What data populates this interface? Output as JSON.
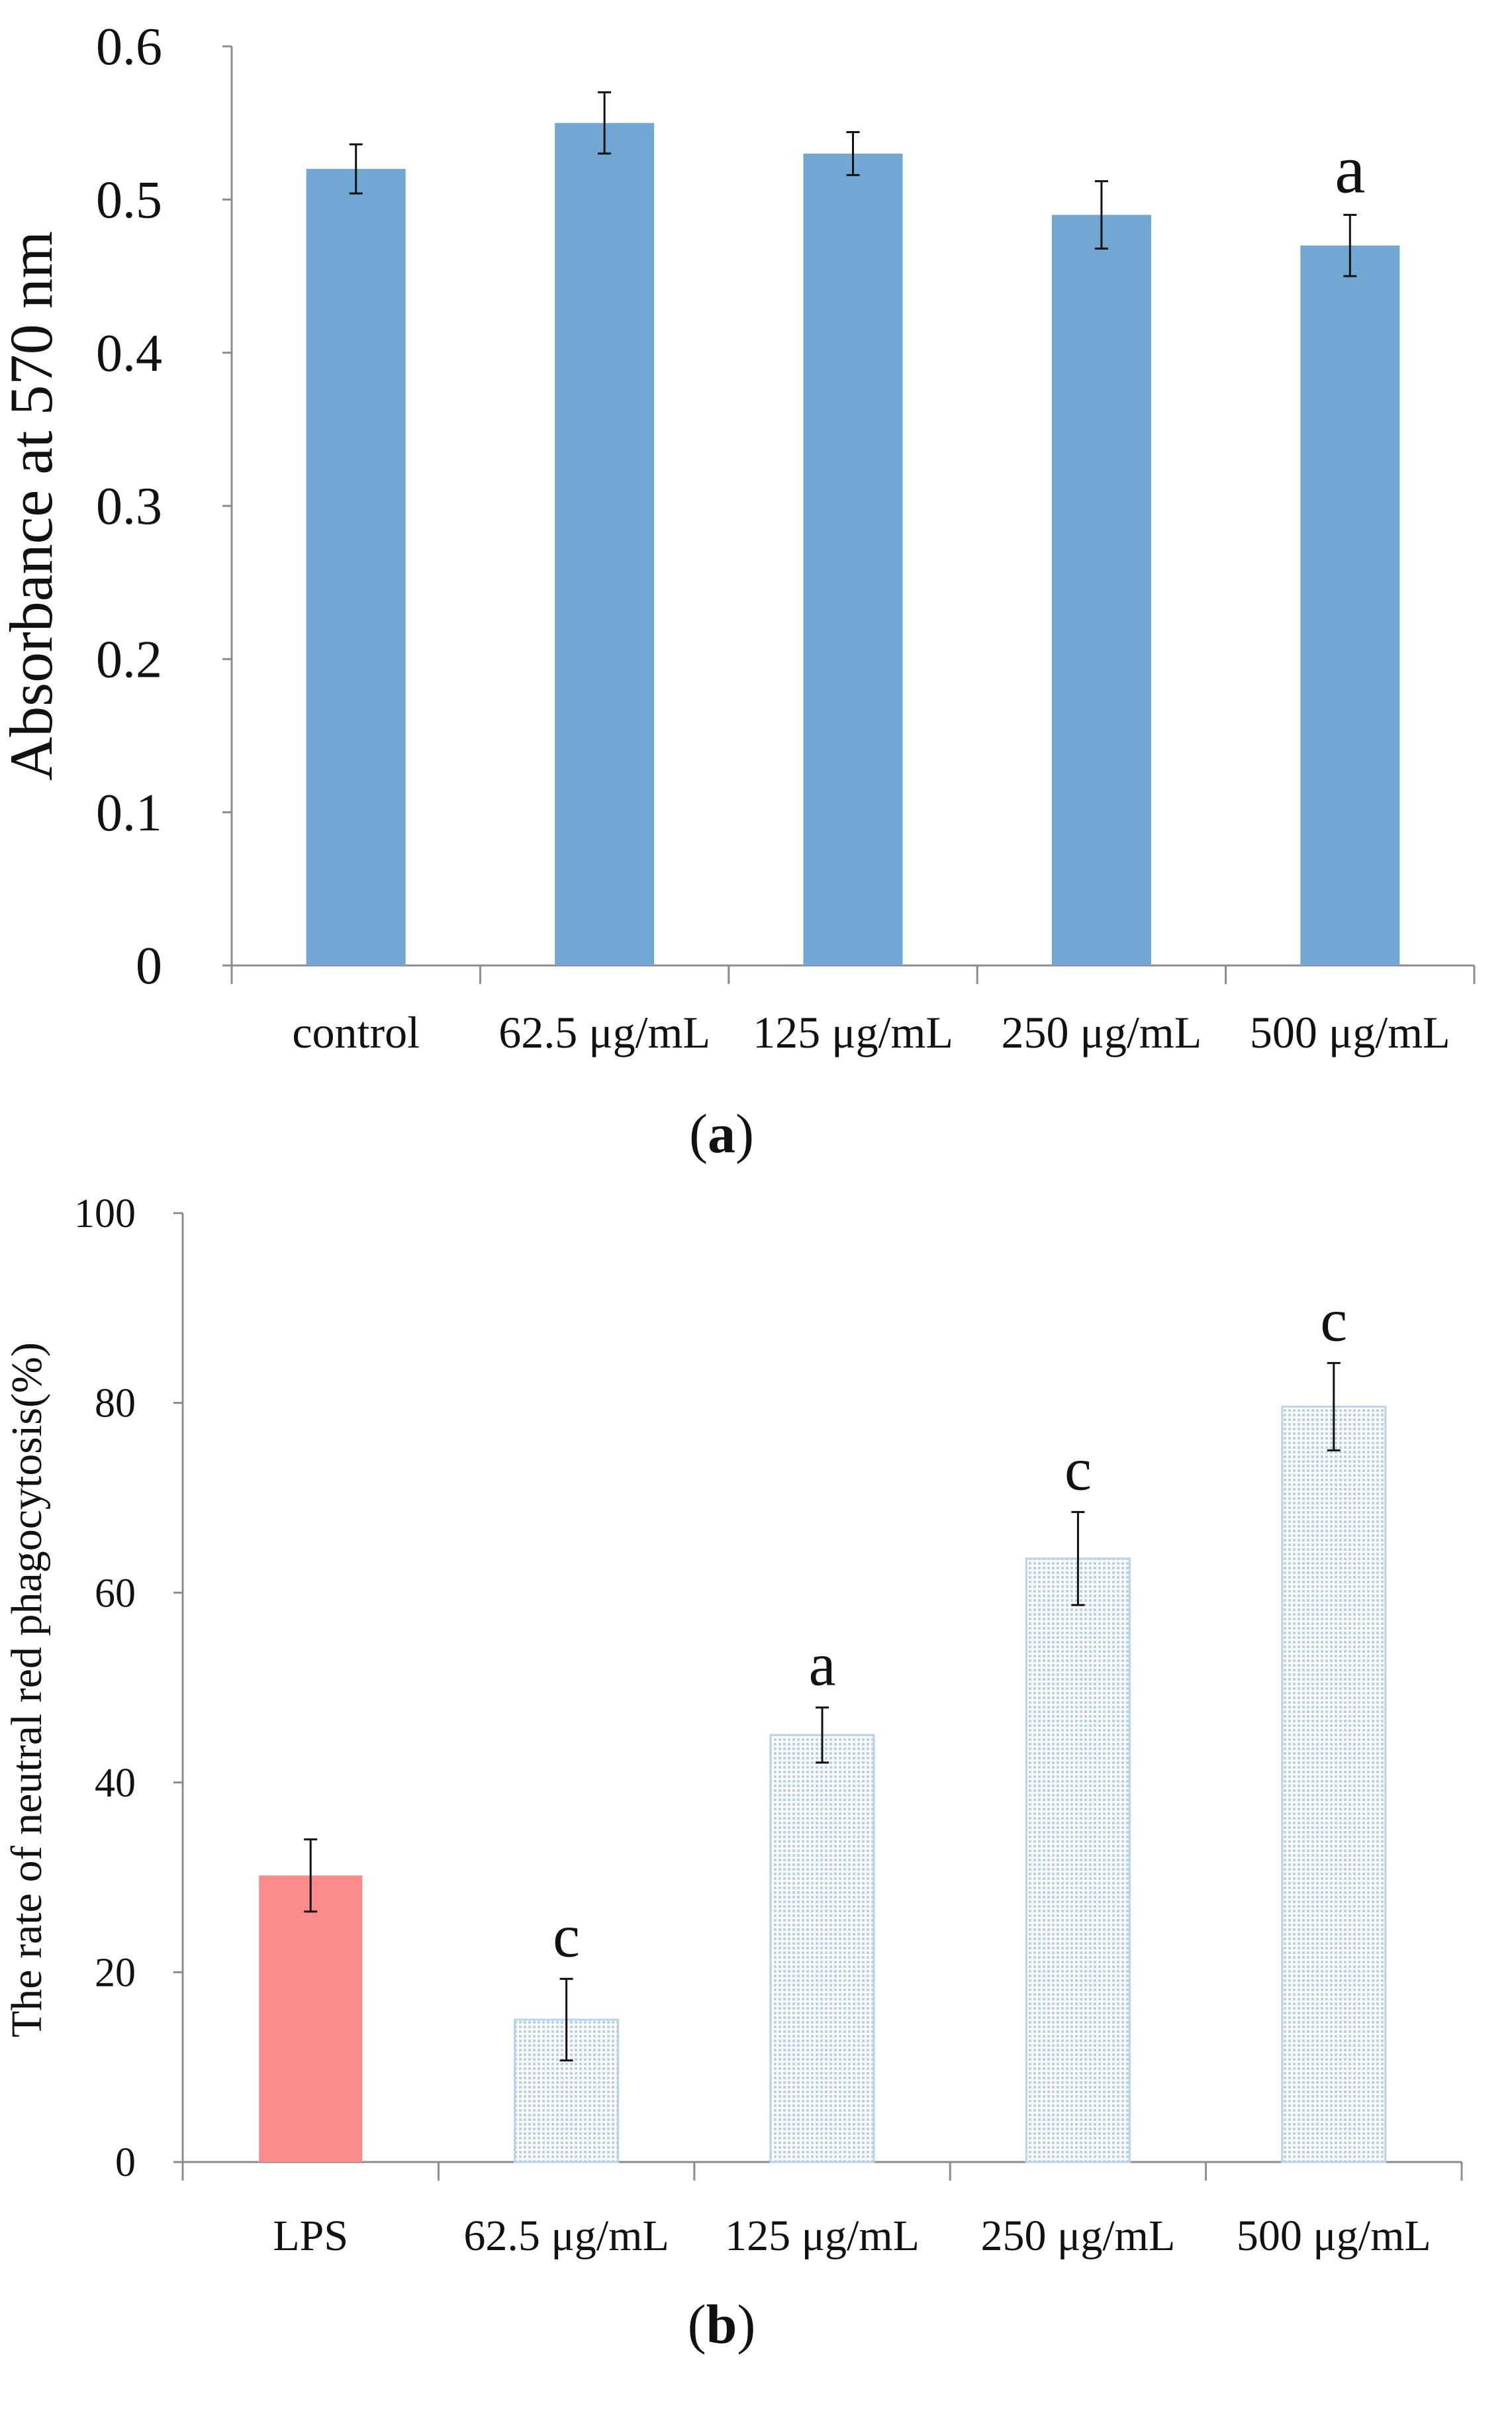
{
  "chart_data": [
    {
      "type": "bar",
      "panel_label": "a",
      "title": "",
      "xlabel": "",
      "ylabel": "Absorbance at 570 nm",
      "ylim": [
        0,
        0.6
      ],
      "yticks": [
        "0",
        "0.1",
        "0.2",
        "0.3",
        "0.4",
        "0.5",
        "0.6"
      ],
      "categories": [
        "control",
        "62.5 μg/mL",
        "125 μg/mL",
        "250 μg/mL",
        "500 μg/mL"
      ],
      "values": [
        0.52,
        0.55,
        0.53,
        0.49,
        0.47
      ],
      "errors": [
        0.016,
        0.02,
        0.014,
        0.022,
        0.02
      ],
      "annotations": [
        "",
        "",
        "",
        "",
        "a"
      ],
      "bar_colors": [
        "#72a7d4",
        "#72a7d4",
        "#72a7d4",
        "#72a7d4",
        "#72a7d4"
      ],
      "bar_patterns": [
        "solid",
        "solid",
        "solid",
        "solid",
        "solid"
      ],
      "grid": false,
      "legend": "none"
    },
    {
      "type": "bar",
      "panel_label": "b",
      "title": "",
      "xlabel": "",
      "ylabel": "The rate of neutral red  phagocytosis(%)",
      "ylim": [
        0,
        100
      ],
      "yticks": [
        "0",
        "20",
        "40",
        "60",
        "80",
        "100"
      ],
      "categories": [
        "LPS",
        "62.5 μg/mL",
        "125 μg/mL",
        "250 μg/mL",
        "500 μg/mL"
      ],
      "values": [
        30.2,
        15.0,
        45.0,
        63.6,
        79.6
      ],
      "errors": [
        3.8,
        4.3,
        2.9,
        4.9,
        4.6
      ],
      "annotations": [
        "",
        "c",
        "a",
        "c",
        "c"
      ],
      "bar_colors": [
        "#fd8b8b",
        "#a9c8e3",
        "#a9c8e3",
        "#a9c8e3",
        "#a9c8e3"
      ],
      "bar_patterns": [
        "solid",
        "dotted",
        "dotted",
        "dotted",
        "dotted"
      ],
      "grid": false,
      "legend": "none"
    }
  ]
}
